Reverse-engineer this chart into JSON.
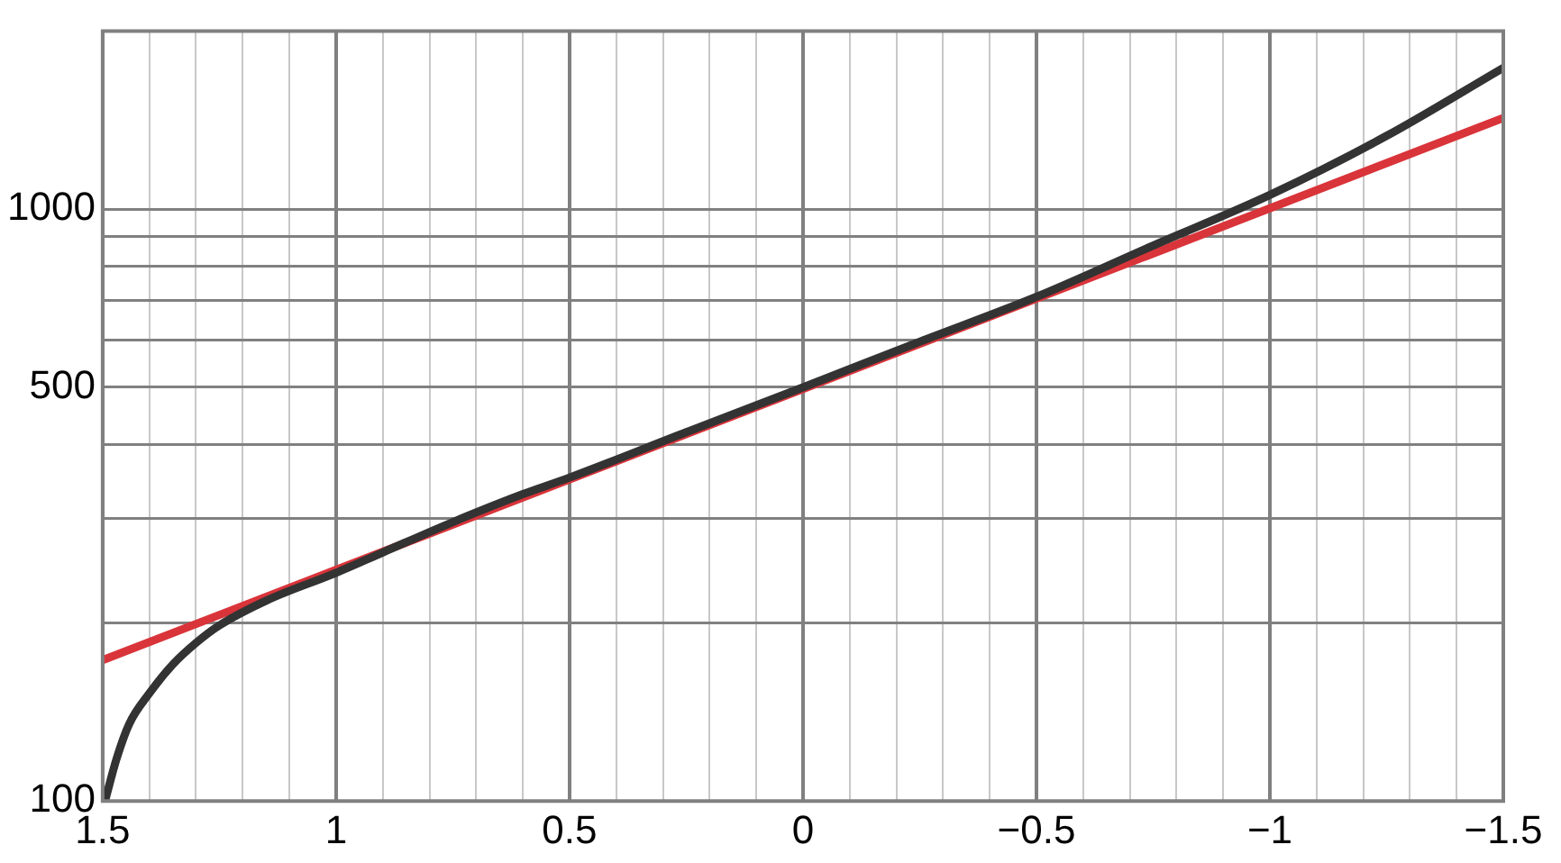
{
  "chart_data": {
    "type": "line",
    "log": "y",
    "grid": true,
    "marker": "none",
    "line_style": "solid",
    "legend": false,
    "xlim": [
      1.5,
      -1.5
    ],
    "xticks": [
      {
        "value": 1.5,
        "label": "1.5"
      },
      {
        "value": 1.4,
        "label": null
      },
      {
        "value": 1.3,
        "label": null
      },
      {
        "value": 1.2,
        "label": null
      },
      {
        "value": 1.1,
        "label": null
      },
      {
        "value": 1,
        "label": "1"
      },
      {
        "value": 0.9,
        "label": null
      },
      {
        "value": 0.8,
        "label": null
      },
      {
        "value": 0.7,
        "label": null
      },
      {
        "value": 0.6,
        "label": null
      },
      {
        "value": 0.5,
        "label": "0.5"
      },
      {
        "value": 0.4,
        "label": null
      },
      {
        "value": 0.3,
        "label": null
      },
      {
        "value": 0.2,
        "label": null
      },
      {
        "value": 0.1,
        "label": null
      },
      {
        "value": 0,
        "label": "0"
      },
      {
        "value": -0.1,
        "label": null
      },
      {
        "value": -0.2,
        "label": null
      },
      {
        "value": -0.3,
        "label": null
      },
      {
        "value": -0.4,
        "label": null
      },
      {
        "value": -0.5,
        "label": "−0.5"
      },
      {
        "value": -0.6,
        "label": null
      },
      {
        "value": -0.7,
        "label": null
      },
      {
        "value": -0.8,
        "label": null
      },
      {
        "value": -0.9,
        "label": null
      },
      {
        "value": -1,
        "label": "−1"
      },
      {
        "value": -1.1,
        "label": null
      },
      {
        "value": -1.2,
        "label": null
      },
      {
        "value": -1.3,
        "label": null
      },
      {
        "value": -1.4,
        "label": null
      },
      {
        "value": -1.5,
        "label": "−1.5"
      }
    ],
    "ylim": [
      100,
      2000
    ],
    "yticks": [
      100,
      {
        "value": 200,
        "label": null
      },
      {
        "value": 300,
        "label": null
      },
      {
        "value": 400,
        "label": null
      },
      500,
      {
        "value": 600,
        "label": null
      },
      {
        "value": 700,
        "label": null
      },
      {
        "value": 800,
        "label": null
      },
      {
        "value": 900,
        "label": null
      },
      1000
    ],
    "series": [
      {
        "color": "#333333",
        "x": [
          1.495,
          1.47,
          1.443,
          1.4,
          1.35,
          1.3,
          1.25,
          1.15,
          1.0,
          0.9,
          0.75,
          0.6,
          0.5,
          0.25,
          0,
          -0.25,
          -0.5,
          -0.75,
          -1.0,
          -1.25,
          -1.5
        ],
        "values": [
          100,
          118,
          135,
          152,
          170,
          185,
          198,
          218,
          243,
          263,
          296,
          330,
          352,
          420,
          500,
          597,
          711,
          868,
          1057,
          1330,
          1733
        ]
      },
      {
        "color": "#d9343a",
        "x": [
          1.5,
          -1.5
        ],
        "values": [
          173,
          1426
        ]
      }
    ]
  }
}
